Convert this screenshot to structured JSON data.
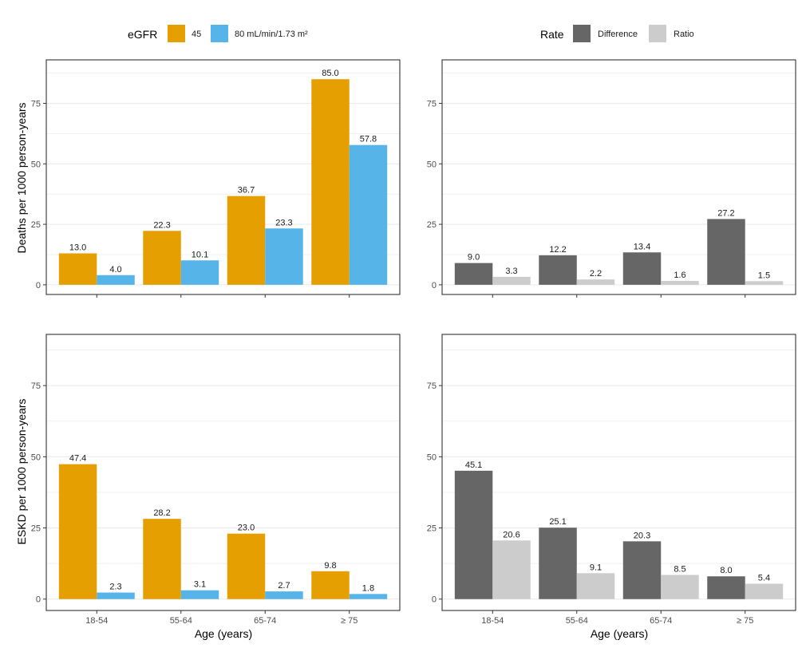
{
  "colors": {
    "egfr_45": "#E69F00",
    "egfr_80": "#56B4E9",
    "difference": "#666666",
    "ratio": "#CCCCCC",
    "grid": "#ebebeb",
    "panel_border": "#333333"
  },
  "legends": {
    "egfr": {
      "title": "eGFR",
      "items": [
        {
          "label": "45",
          "color": "#E69F00"
        },
        {
          "label": "80 mL/min/1.73 m²",
          "color": "#56B4E9"
        }
      ]
    },
    "rate": {
      "title": "Rate",
      "items": [
        {
          "label": "Difference",
          "color": "#666666"
        },
        {
          "label": "Ratio",
          "color": "#CCCCCC"
        }
      ]
    }
  },
  "chart_data": [
    {
      "type": "bar",
      "panel": "top-left",
      "ylabel": "Deaths per 1000 person-years",
      "xlabel": "",
      "ylim": [
        -4,
        93
      ],
      "yticks": [
        0,
        25,
        50,
        75
      ],
      "categories": [
        "18-54",
        "55-64",
        "65-74",
        "≥ 75"
      ],
      "series": [
        {
          "name": "45",
          "color": "#E69F00",
          "values": [
            13.0,
            22.3,
            36.7,
            85.0
          ],
          "labels": [
            "13.0",
            "22.3",
            "36.7",
            "85.0"
          ]
        },
        {
          "name": "80 mL/min/1.73 m²",
          "color": "#56B4E9",
          "values": [
            4.0,
            10.1,
            23.3,
            57.8
          ],
          "labels": [
            "4.0",
            "10.1",
            "23.3",
            "57.8"
          ]
        }
      ]
    },
    {
      "type": "bar",
      "panel": "top-right",
      "ylabel": "",
      "xlabel": "",
      "ylim": [
        -4,
        93
      ],
      "yticks": [
        0,
        25,
        50,
        75
      ],
      "categories": [
        "18-54",
        "55-64",
        "65-74",
        "≥ 75"
      ],
      "series": [
        {
          "name": "Difference",
          "color": "#666666",
          "values": [
            9.0,
            12.2,
            13.4,
            27.2
          ],
          "labels": [
            "9.0",
            "12.2",
            "13.4",
            "27.2"
          ]
        },
        {
          "name": "Ratio",
          "color": "#CCCCCC",
          "values": [
            3.3,
            2.2,
            1.6,
            1.5
          ],
          "labels": [
            "3.3",
            "2.2",
            "1.6",
            "1.5"
          ]
        }
      ]
    },
    {
      "type": "bar",
      "panel": "bottom-left",
      "ylabel": "ESKD per 1000 person-years",
      "xlabel": "Age (years)",
      "ylim": [
        -4,
        93
      ],
      "yticks": [
        0,
        25,
        50,
        75
      ],
      "categories": [
        "18-54",
        "55-64",
        "65-74",
        "≥ 75"
      ],
      "series": [
        {
          "name": "45",
          "color": "#E69F00",
          "values": [
            47.4,
            28.2,
            23.0,
            9.8
          ],
          "labels": [
            "47.4",
            "28.2",
            "23.0",
            "9.8"
          ]
        },
        {
          "name": "80 mL/min/1.73 m²",
          "color": "#56B4E9",
          "values": [
            2.3,
            3.1,
            2.7,
            1.8
          ],
          "labels": [
            "2.3",
            "3.1",
            "2.7",
            "1.8"
          ]
        }
      ]
    },
    {
      "type": "bar",
      "panel": "bottom-right",
      "ylabel": "",
      "xlabel": "Age (years)",
      "ylim": [
        -4,
        93
      ],
      "yticks": [
        0,
        25,
        50,
        75
      ],
      "categories": [
        "18-54",
        "55-64",
        "65-74",
        "≥ 75"
      ],
      "series": [
        {
          "name": "Difference",
          "color": "#666666",
          "values": [
            45.1,
            25.1,
            20.3,
            8.0
          ],
          "labels": [
            "45.1",
            "25.1",
            "20.3",
            "8.0"
          ]
        },
        {
          "name": "Ratio",
          "color": "#CCCCCC",
          "values": [
            20.6,
            9.1,
            8.5,
            5.4
          ],
          "labels": [
            "20.6",
            "9.1",
            "8.5",
            "5.4"
          ]
        }
      ]
    }
  ]
}
